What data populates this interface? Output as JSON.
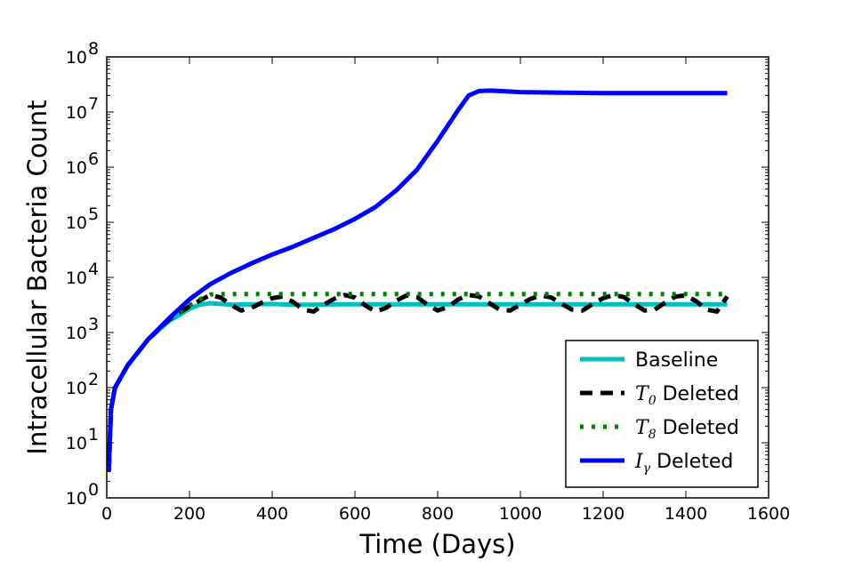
{
  "chart_data": {
    "type": "line",
    "title": "",
    "xlabel": "Time (Days)",
    "ylabel": "Intracellular Bacteria Count",
    "xlim": [
      0,
      1600
    ],
    "ylim": [
      1,
      100000000
    ],
    "yscale": "log",
    "grid": false,
    "legend_position": "lower-right",
    "x_ticks": [
      {
        "value": 0,
        "label": "0"
      },
      {
        "value": 200,
        "label": "200"
      },
      {
        "value": 400,
        "label": "400"
      },
      {
        "value": 600,
        "label": "600"
      },
      {
        "value": 800,
        "label": "800"
      },
      {
        "value": 1000,
        "label": "1000"
      },
      {
        "value": 1200,
        "label": "1200"
      },
      {
        "value": 1400,
        "label": "1400"
      },
      {
        "value": 1600,
        "label": "1600"
      }
    ],
    "y_ticks": [
      {
        "value": 1,
        "base": "10",
        "exp": "0"
      },
      {
        "value": 10,
        "base": "10",
        "exp": "1"
      },
      {
        "value": 100,
        "base": "10",
        "exp": "2"
      },
      {
        "value": 1000,
        "base": "10",
        "exp": "3"
      },
      {
        "value": 10000,
        "base": "10",
        "exp": "4"
      },
      {
        "value": 100000,
        "base": "10",
        "exp": "5"
      },
      {
        "value": 1000000,
        "base": "10",
        "exp": "6"
      },
      {
        "value": 10000000,
        "base": "10",
        "exp": "7"
      },
      {
        "value": 100000000,
        "base": "10",
        "exp": "8"
      }
    ],
    "series": [
      {
        "name": "Baseline",
        "color": "#00bfbf",
        "style": "solid",
        "x": [
          5,
          10,
          20,
          50,
          100,
          150,
          200,
          225,
          250,
          275,
          300,
          350,
          400,
          450,
          500,
          550,
          600,
          700,
          800,
          900,
          1000,
          1100,
          1200,
          1300,
          1400,
          1500
        ],
        "y": [
          3,
          40,
          100,
          250,
          750,
          1600,
          2700,
          3200,
          3400,
          3300,
          3200,
          3250,
          3300,
          3200,
          3200,
          3250,
          3250,
          3250,
          3250,
          3250,
          3250,
          3250,
          3250,
          3250,
          3250,
          3250
        ]
      },
      {
        "name": "T0 Deleted",
        "label_symbol": "T",
        "label_sub": "0",
        "label_rest": " Deleted",
        "color": "#000000",
        "style": "dashed",
        "x": [
          5,
          10,
          20,
          50,
          100,
          150,
          200,
          225,
          250,
          275,
          300,
          325,
          350,
          375,
          400,
          425,
          450,
          475,
          500,
          525,
          550,
          575,
          600,
          625,
          650,
          675,
          700,
          725,
          750,
          775,
          800,
          825,
          850,
          875,
          900,
          925,
          950,
          975,
          1000,
          1025,
          1050,
          1075,
          1100,
          1125,
          1150,
          1175,
          1200,
          1225,
          1250,
          1275,
          1300,
          1325,
          1350,
          1375,
          1400,
          1425,
          1450,
          1475,
          1500
        ],
        "y": [
          3,
          40,
          100,
          250,
          750,
          1700,
          3000,
          3800,
          4800,
          4300,
          3200,
          2500,
          2800,
          3500,
          4200,
          4500,
          3600,
          2600,
          2400,
          3200,
          4100,
          4800,
          4300,
          3100,
          2400,
          2800,
          3800,
          4700,
          4400,
          3200,
          2500,
          2900,
          4000,
          4800,
          4500,
          3400,
          2600,
          2500,
          3200,
          4100,
          4700,
          4300,
          3300,
          2600,
          2500,
          3300,
          4200,
          4800,
          4400,
          3300,
          2500,
          2600,
          3500,
          4500,
          4700,
          3700,
          2600,
          2400,
          4500
        ]
      },
      {
        "name": "T8 Deleted",
        "label_symbol": "T",
        "label_sub": "8",
        "label_rest": " Deleted",
        "color": "#007f00",
        "style": "dotted",
        "x": [
          5,
          10,
          20,
          50,
          100,
          150,
          200,
          225,
          250,
          275,
          300,
          400,
          500,
          600,
          700,
          800,
          900,
          1000,
          1100,
          1200,
          1300,
          1400,
          1500
        ],
        "y": [
          3,
          40,
          100,
          250,
          750,
          1700,
          3100,
          4000,
          4900,
          5000,
          5000,
          5000,
          5000,
          5000,
          5000,
          5000,
          5000,
          5000,
          5000,
          5000,
          5000,
          5000,
          5000
        ]
      },
      {
        "name": "Iγ Deleted",
        "label_symbol": "I",
        "label_sub": "γ",
        "label_rest": " Deleted",
        "color": "#0000ff",
        "style": "solid",
        "x": [
          5,
          10,
          20,
          50,
          100,
          150,
          200,
          250,
          300,
          350,
          400,
          450,
          500,
          550,
          600,
          650,
          700,
          750,
          800,
          850,
          875,
          900,
          925,
          950,
          1000,
          1100,
          1200,
          1300,
          1400,
          1500
        ],
        "y": [
          3,
          40,
          100,
          250,
          750,
          1800,
          4000,
          7500,
          12000,
          18000,
          26000,
          36000,
          52000,
          75000,
          115000,
          190000,
          380000,
          900000,
          3000000,
          11000000,
          20000000,
          24000000,
          24500000,
          24000000,
          23000000,
          22500000,
          22000000,
          22000000,
          22000000,
          22000000
        ]
      }
    ]
  }
}
